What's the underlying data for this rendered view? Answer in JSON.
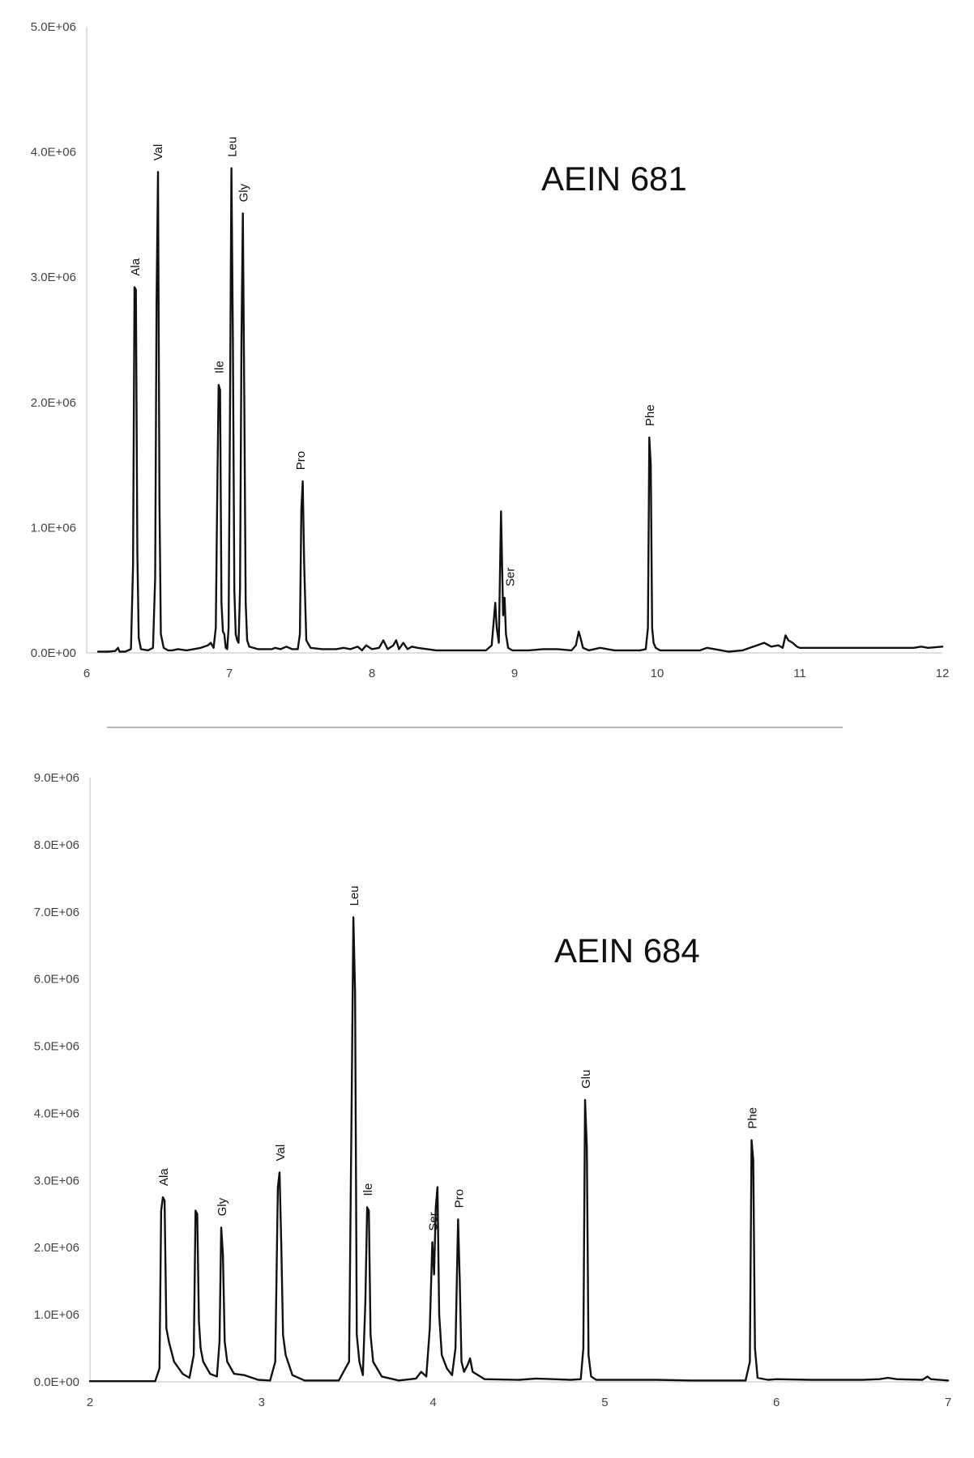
{
  "chart_data": [
    {
      "type": "line",
      "title": "AEIN 681",
      "xlabel": "",
      "ylabel": "",
      "xlim": [
        6,
        12
      ],
      "ylim": [
        0,
        5000000
      ],
      "x_ticks": [
        "6",
        "7",
        "8",
        "9",
        "10",
        "11",
        "12"
      ],
      "y_ticks": [
        "0.0E+00",
        "1.0E+06",
        "2.0E+06",
        "3.0E+06",
        "4.0E+06",
        "5.0E+06"
      ],
      "grid": false,
      "peaks": [
        {
          "label": "Ala",
          "x": 6.34,
          "y": 2920000
        },
        {
          "label": "Val",
          "x": 6.5,
          "y": 3840000
        },
        {
          "label": "Ile",
          "x": 6.93,
          "y": 2140000
        },
        {
          "label": "Leu",
          "x": 7.02,
          "y": 3870000
        },
        {
          "label": "Gly",
          "x": 7.1,
          "y": 3510000
        },
        {
          "label": "Pro",
          "x": 7.5,
          "y": 1370000
        },
        {
          "label": "Ser",
          "x": 8.97,
          "y": 440000
        },
        {
          "label": "Phe",
          "x": 9.95,
          "y": 1720000
        }
      ],
      "series": [
        {
          "x": [
            6.08,
            6.15,
            6.2,
            6.22,
            6.23,
            6.27,
            6.31,
            6.325,
            6.335,
            6.345,
            6.355,
            6.365,
            6.38,
            6.43,
            6.465,
            6.48,
            6.49,
            6.5,
            6.51,
            6.52,
            6.54,
            6.57,
            6.6,
            6.64,
            6.7,
            6.75,
            6.8,
            6.85,
            6.87,
            6.89,
            6.905,
            6.915,
            6.925,
            6.935,
            6.945,
            6.955,
            6.965,
            6.975,
            6.985,
            6.995,
            7.005,
            7.015,
            7.025,
            7.035,
            7.045,
            7.055,
            7.065,
            7.075,
            7.085,
            7.095,
            7.105,
            7.115,
            7.125,
            7.14,
            7.2,
            7.3,
            7.32,
            7.36,
            7.4,
            7.44,
            7.48,
            7.495,
            7.505,
            7.515,
            7.525,
            7.54,
            7.57,
            7.65,
            7.75,
            7.8,
            7.85,
            7.9,
            7.93,
            7.96,
            8.0,
            8.05,
            8.08,
            8.11,
            8.15,
            8.17,
            8.19,
            8.22,
            8.25,
            8.28,
            8.32,
            8.45,
            8.55,
            8.7,
            8.8,
            8.84,
            8.865,
            8.875,
            8.89,
            8.905,
            8.92,
            8.93,
            8.94,
            8.955,
            8.97,
            8.985,
            9.0,
            9.03,
            9.1,
            9.2,
            9.3,
            9.4,
            9.43,
            9.45,
            9.46,
            9.48,
            9.52,
            9.6,
            9.7,
            9.8,
            9.88,
            9.92,
            9.935,
            9.945,
            9.955,
            9.965,
            9.975,
            9.99,
            10.02,
            10.1,
            10.3,
            10.35,
            10.5,
            10.6,
            10.65,
            10.7,
            10.75,
            10.8,
            10.85,
            10.88,
            10.9,
            10.92,
            10.95,
            10.98,
            11.0,
            11.2,
            11.5,
            11.8,
            11.85,
            11.9,
            12.0
          ],
          "values": [
            10000,
            10000,
            15000,
            40000,
            10000,
            10000,
            30000,
            700000,
            2920000,
            2900000,
            800000,
            120000,
            30000,
            20000,
            40000,
            600000,
            2800000,
            3840000,
            1200000,
            150000,
            40000,
            20000,
            20000,
            30000,
            20000,
            30000,
            40000,
            60000,
            80000,
            40000,
            200000,
            1200000,
            2140000,
            2100000,
            400000,
            170000,
            150000,
            40000,
            30000,
            200000,
            2000000,
            3870000,
            2500000,
            500000,
            150000,
            100000,
            80000,
            500000,
            2500000,
            3510000,
            2000000,
            400000,
            100000,
            50000,
            30000,
            30000,
            40000,
            30000,
            50000,
            30000,
            30000,
            150000,
            1150000,
            1370000,
            700000,
            100000,
            40000,
            30000,
            30000,
            40000,
            30000,
            50000,
            20000,
            60000,
            30000,
            40000,
            100000,
            30000,
            60000,
            100000,
            30000,
            80000,
            30000,
            50000,
            40000,
            20000,
            20000,
            20000,
            20000,
            60000,
            400000,
            200000,
            80000,
            1130000,
            300000,
            440000,
            150000,
            40000,
            30000,
            20000,
            20000,
            20000,
            20000,
            30000,
            30000,
            20000,
            60000,
            170000,
            130000,
            40000,
            20000,
            40000,
            20000,
            20000,
            20000,
            30000,
            200000,
            1720000,
            1500000,
            200000,
            80000,
            40000,
            20000,
            20000,
            20000,
            40000,
            10000,
            20000,
            40000,
            60000,
            80000,
            50000,
            60000,
            40000,
            140000,
            100000,
            80000,
            50000,
            40000,
            40000,
            40000,
            40000,
            50000,
            40000,
            50000
          ]
        }
      ]
    },
    {
      "type": "line",
      "title": "AEIN 684",
      "xlabel": "",
      "ylabel": "",
      "xlim": [
        2,
        7
      ],
      "ylim": [
        0,
        9000000
      ],
      "x_ticks": [
        "2",
        "3",
        "4",
        "5",
        "6",
        "7"
      ],
      "y_ticks": [
        "0.0E+00",
        "1.0E+06",
        "2.0E+06",
        "3.0E+06",
        "4.0E+06",
        "5.0E+06",
        "6.0E+06",
        "7.0E+06",
        "8.0E+06",
        "9.0E+06"
      ],
      "grid": false,
      "peaks": [
        {
          "label": "Ala",
          "x": 2.43,
          "y": 2750000
        },
        {
          "label": "Gly",
          "x": 2.77,
          "y": 2300000
        },
        {
          "label": "Val",
          "x": 3.11,
          "y": 3120000
        },
        {
          "label": "Leu",
          "x": 3.54,
          "y": 6920000
        },
        {
          "label": "Ile",
          "x": 3.62,
          "y": 2600000
        },
        {
          "label": "Ser",
          "x": 4.0,
          "y": 2080000
        },
        {
          "label": "Pro",
          "x": 4.15,
          "y": 2420000
        },
        {
          "label": "Glu",
          "x": 4.89,
          "y": 4200000
        },
        {
          "label": "Phe",
          "x": 5.86,
          "y": 3600000
        }
      ],
      "series": [
        {
          "x": [
            2.0,
            2.1,
            2.2,
            2.3,
            2.38,
            2.405,
            2.415,
            2.425,
            2.435,
            2.445,
            2.46,
            2.49,
            2.54,
            2.58,
            2.605,
            2.615,
            2.625,
            2.635,
            2.645,
            2.66,
            2.7,
            2.74,
            2.755,
            2.765,
            2.775,
            2.785,
            2.8,
            2.84,
            2.9,
            2.98,
            3.05,
            3.08,
            3.095,
            3.105,
            3.115,
            3.125,
            3.14,
            3.18,
            3.25,
            3.35,
            3.45,
            3.51,
            3.525,
            3.535,
            3.545,
            3.555,
            3.57,
            3.59,
            3.605,
            3.615,
            3.625,
            3.635,
            3.65,
            3.7,
            3.8,
            3.9,
            3.93,
            3.96,
            3.98,
            3.995,
            4.005,
            4.015,
            4.025,
            4.035,
            4.05,
            4.08,
            4.11,
            4.13,
            4.145,
            4.155,
            4.165,
            4.18,
            4.2,
            4.215,
            4.23,
            4.3,
            4.5,
            4.6,
            4.7,
            4.8,
            4.86,
            4.875,
            4.885,
            4.895,
            4.905,
            4.92,
            4.95,
            5.1,
            5.3,
            5.5,
            5.7,
            5.82,
            5.845,
            5.855,
            5.865,
            5.875,
            5.89,
            5.95,
            6.0,
            6.2,
            6.5,
            6.6,
            6.65,
            6.7,
            6.85,
            6.88,
            6.9,
            7.0
          ],
          "values": [
            10000,
            10000,
            10000,
            10000,
            10000,
            200000,
            2550000,
            2750000,
            2700000,
            800000,
            600000,
            300000,
            120000,
            60000,
            400000,
            2550000,
            2500000,
            900000,
            500000,
            300000,
            120000,
            80000,
            600000,
            2300000,
            1900000,
            600000,
            300000,
            120000,
            100000,
            30000,
            20000,
            300000,
            2900000,
            3120000,
            2000000,
            700000,
            400000,
            100000,
            20000,
            20000,
            20000,
            300000,
            4200000,
            6920000,
            5800000,
            700000,
            300000,
            100000,
            1200000,
            2600000,
            2550000,
            700000,
            300000,
            80000,
            20000,
            50000,
            150000,
            80000,
            800000,
            2080000,
            1600000,
            2600000,
            2900000,
            1000000,
            400000,
            200000,
            100000,
            500000,
            2420000,
            1500000,
            300000,
            150000,
            250000,
            350000,
            150000,
            40000,
            30000,
            50000,
            40000,
            30000,
            40000,
            500000,
            4200000,
            3500000,
            400000,
            80000,
            30000,
            30000,
            30000,
            20000,
            20000,
            20000,
            300000,
            3600000,
            3300000,
            500000,
            60000,
            30000,
            40000,
            30000,
            30000,
            40000,
            60000,
            40000,
            30000,
            80000,
            40000,
            20000
          ]
        }
      ]
    }
  ]
}
